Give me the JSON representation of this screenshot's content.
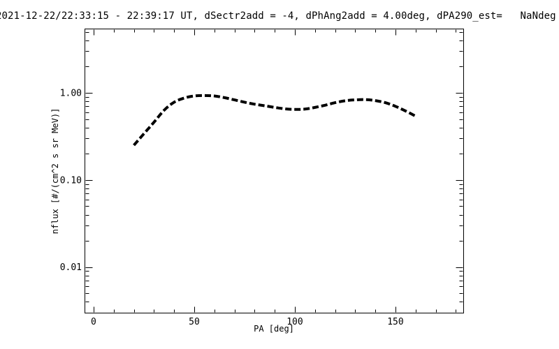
{
  "window": {
    "background": "#ffffff",
    "foreground": "#000000"
  },
  "chart_data": {
    "type": "line",
    "title": "2021-12-22/22:33:15 - 22:39:17 UT, dSectr2add = -4, dPhAng2add = 4.00deg, dPA290_est=   NaNdeg",
    "xlabel": "PA [deg]",
    "ylabel": "nflux [#/(cm^2 s sr MeV)]",
    "x_scale": "linear",
    "y_scale": "log",
    "xlim": [
      -4.5,
      183.7
    ],
    "ylim": [
      0.003,
      5.45
    ],
    "x_major_ticks": [
      0,
      50,
      100,
      150
    ],
    "x_tick_labels": [
      "0",
      "50",
      "100",
      "150"
    ],
    "x_minor_step": 10,
    "x_minor_max": 180,
    "y_major_ticks": [
      1.0,
      0.1,
      0.01
    ],
    "y_tick_labels": [
      "1.00",
      "0.10",
      "0.01"
    ],
    "grid": false,
    "legend": "none",
    "series": [
      {
        "name": "nflux",
        "style": "dashed",
        "color": "#000000",
        "line_width": 4,
        "x": [
          20,
          25,
          30,
          35,
          40,
          45,
          50,
          55,
          60,
          65,
          70,
          75,
          80,
          85,
          90,
          95,
          100,
          105,
          110,
          115,
          120,
          125,
          130,
          135,
          140,
          145,
          150,
          155,
          160
        ],
        "y": [
          0.25,
          0.34,
          0.46,
          0.63,
          0.78,
          0.87,
          0.92,
          0.93,
          0.92,
          0.88,
          0.83,
          0.78,
          0.74,
          0.71,
          0.68,
          0.655,
          0.645,
          0.65,
          0.68,
          0.72,
          0.77,
          0.81,
          0.83,
          0.835,
          0.815,
          0.77,
          0.7,
          0.62,
          0.54
        ]
      }
    ]
  }
}
